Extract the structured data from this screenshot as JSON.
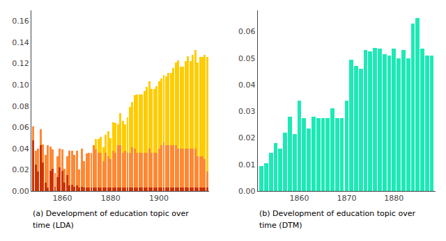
{
  "chart_data": [
    {
      "type": "bar",
      "stacked": true,
      "x": [
        1848,
        1849,
        1850,
        1851,
        1852,
        1853,
        1854,
        1855,
        1856,
        1857,
        1858,
        1859,
        1860,
        1861,
        1862,
        1863,
        1864,
        1865,
        1866,
        1867,
        1868,
        1869,
        1870,
        1871,
        1872,
        1873,
        1874,
        1875,
        1876,
        1877,
        1878,
        1879,
        1880,
        1881,
        1882,
        1883,
        1884,
        1885,
        1886,
        1887,
        1888,
        1889,
        1890,
        1891,
        1892,
        1893,
        1894,
        1895,
        1896,
        1897,
        1898,
        1899,
        1900,
        1901,
        1902,
        1903,
        1904,
        1905,
        1906,
        1907,
        1908,
        1909,
        1910,
        1911,
        1912,
        1913,
        1914,
        1915,
        1916,
        1917,
        1918,
        1919,
        1920
      ],
      "series": [
        {
          "color": "#cc3300",
          "values": [
            0.048,
            0.025,
            0.018,
            0.043,
            0.027,
            0.008,
            0.003,
            0.019,
            0.021,
            0.004,
            0.013,
            0.022,
            0.019,
            0.008,
            0.015,
            0.005,
            0.006,
            0.004,
            0.005,
            0.003,
            0.004,
            0.003,
            0.003,
            0.003,
            0.003,
            0.003,
            0.003,
            0.003,
            0.003,
            0.003,
            0.003,
            0.003,
            0.003,
            0.003,
            0.003,
            0.003,
            0.003,
            0.003,
            0.003,
            0.003,
            0.003,
            0.003,
            0.003,
            0.003,
            0.003,
            0.003,
            0.003,
            0.003,
            0.003,
            0.003,
            0.003,
            0.003,
            0.003,
            0.003,
            0.003,
            0.003,
            0.003,
            0.003,
            0.003,
            0.003,
            0.003,
            0.003,
            0.003,
            0.003,
            0.003,
            0.003,
            0.003,
            0.003,
            0.003,
            0.003,
            0.003,
            0.003,
            0.003
          ]
        },
        {
          "color": "#ff8833",
          "values": [
            0.013,
            0.013,
            0.022,
            0.015,
            0.017,
            0.026,
            0.04,
            0.023,
            0.018,
            0.013,
            0.02,
            0.018,
            0.02,
            0.013,
            0.018,
            0.033,
            0.032,
            0.03,
            0.033,
            0.017,
            0.036,
            0.025,
            0.032,
            0.033,
            0.033,
            0.04,
            0.036,
            0.033,
            0.033,
            0.025,
            0.033,
            0.03,
            0.027,
            0.035,
            0.033,
            0.04,
            0.04,
            0.033,
            0.035,
            0.033,
            0.033,
            0.038,
            0.037,
            0.033,
            0.033,
            0.033,
            0.033,
            0.033,
            0.037,
            0.033,
            0.033,
            0.033,
            0.037,
            0.04,
            0.043,
            0.04,
            0.04,
            0.04,
            0.04,
            0.04,
            0.037,
            0.037,
            0.037,
            0.037,
            0.037,
            0.037,
            0.037,
            0.037,
            0.03,
            0.03,
            0.03,
            0.027,
            0.015
          ]
        },
        {
          "color": "#ffcc00",
          "values": [
            0.0,
            0.0,
            0.0,
            0.0,
            0.0,
            0.0,
            0.0,
            0.0,
            0.0,
            0.0,
            0.0,
            0.0,
            0.0,
            0.0,
            0.0,
            0.0,
            0.0,
            0.0,
            0.0,
            0.0,
            0.0,
            0.0,
            0.0,
            0.0,
            0.0,
            0.0,
            0.01,
            0.013,
            0.015,
            0.013,
            0.017,
            0.023,
            0.02,
            0.027,
            0.028,
            0.02,
            0.03,
            0.03,
            0.025,
            0.033,
            0.043,
            0.043,
            0.05,
            0.055,
            0.055,
            0.055,
            0.058,
            0.062,
            0.063,
            0.06,
            0.06,
            0.063,
            0.063,
            0.063,
            0.063,
            0.065,
            0.068,
            0.068,
            0.073,
            0.078,
            0.083,
            0.077,
            0.077,
            0.082,
            0.087,
            0.082,
            0.088,
            0.093,
            0.088,
            0.093,
            0.093,
            0.098,
            0.108
          ]
        }
      ],
      "xlim": [
        1847.2,
        1920.8
      ],
      "xticks": [
        1860,
        1880,
        1900
      ],
      "ylim": [
        0,
        0.17
      ],
      "yticks": [
        {
          "value": 0,
          "label": "0.00"
        },
        0.02,
        0.04,
        0.06,
        0.08,
        {
          "value": 0.1,
          "label": "0.10"
        },
        0.12,
        0.14,
        0.16
      ],
      "grid": false,
      "annotations": [
        "(a) Development of education topic over",
        "time (LDA)"
      ]
    },
    {
      "type": "bar",
      "x": [
        1852,
        1853,
        1854,
        1855,
        1856,
        1857,
        1858,
        1859,
        1860,
        1861,
        1862,
        1863,
        1864,
        1865,
        1866,
        1867,
        1868,
        1869,
        1870,
        1871,
        1872,
        1873,
        1874,
        1875,
        1876,
        1877,
        1878,
        1879,
        1880,
        1881,
        1882,
        1883,
        1884,
        1885,
        1886,
        1887,
        1888
      ],
      "values": [
        0.0095,
        0.0105,
        0.0145,
        0.018,
        0.016,
        0.022,
        0.028,
        0.0215,
        0.034,
        0.0275,
        0.0235,
        0.028,
        0.0275,
        0.0275,
        0.0275,
        0.031,
        0.0275,
        0.0275,
        0.034,
        0.0495,
        0.047,
        0.046,
        0.053,
        0.0525,
        0.054,
        0.0535,
        0.0515,
        0.051,
        0.0535,
        0.05,
        0.053,
        0.05,
        0.063,
        0.065,
        0.0535,
        0.051,
        0.051
      ],
      "color": "#1de9b6",
      "xlim": [
        1851.2,
        1888.8
      ],
      "xticks": [
        1860,
        1870,
        1880
      ],
      "ylim": [
        0,
        0.068
      ],
      "yticks": [
        {
          "value": 0,
          "label": "0.00"
        },
        0.01,
        0.02,
        0.03,
        0.04,
        0.05,
        0.06
      ],
      "grid": false,
      "annotations": [
        "(b) Development of education topic over",
        "time (DTM)"
      ]
    }
  ]
}
